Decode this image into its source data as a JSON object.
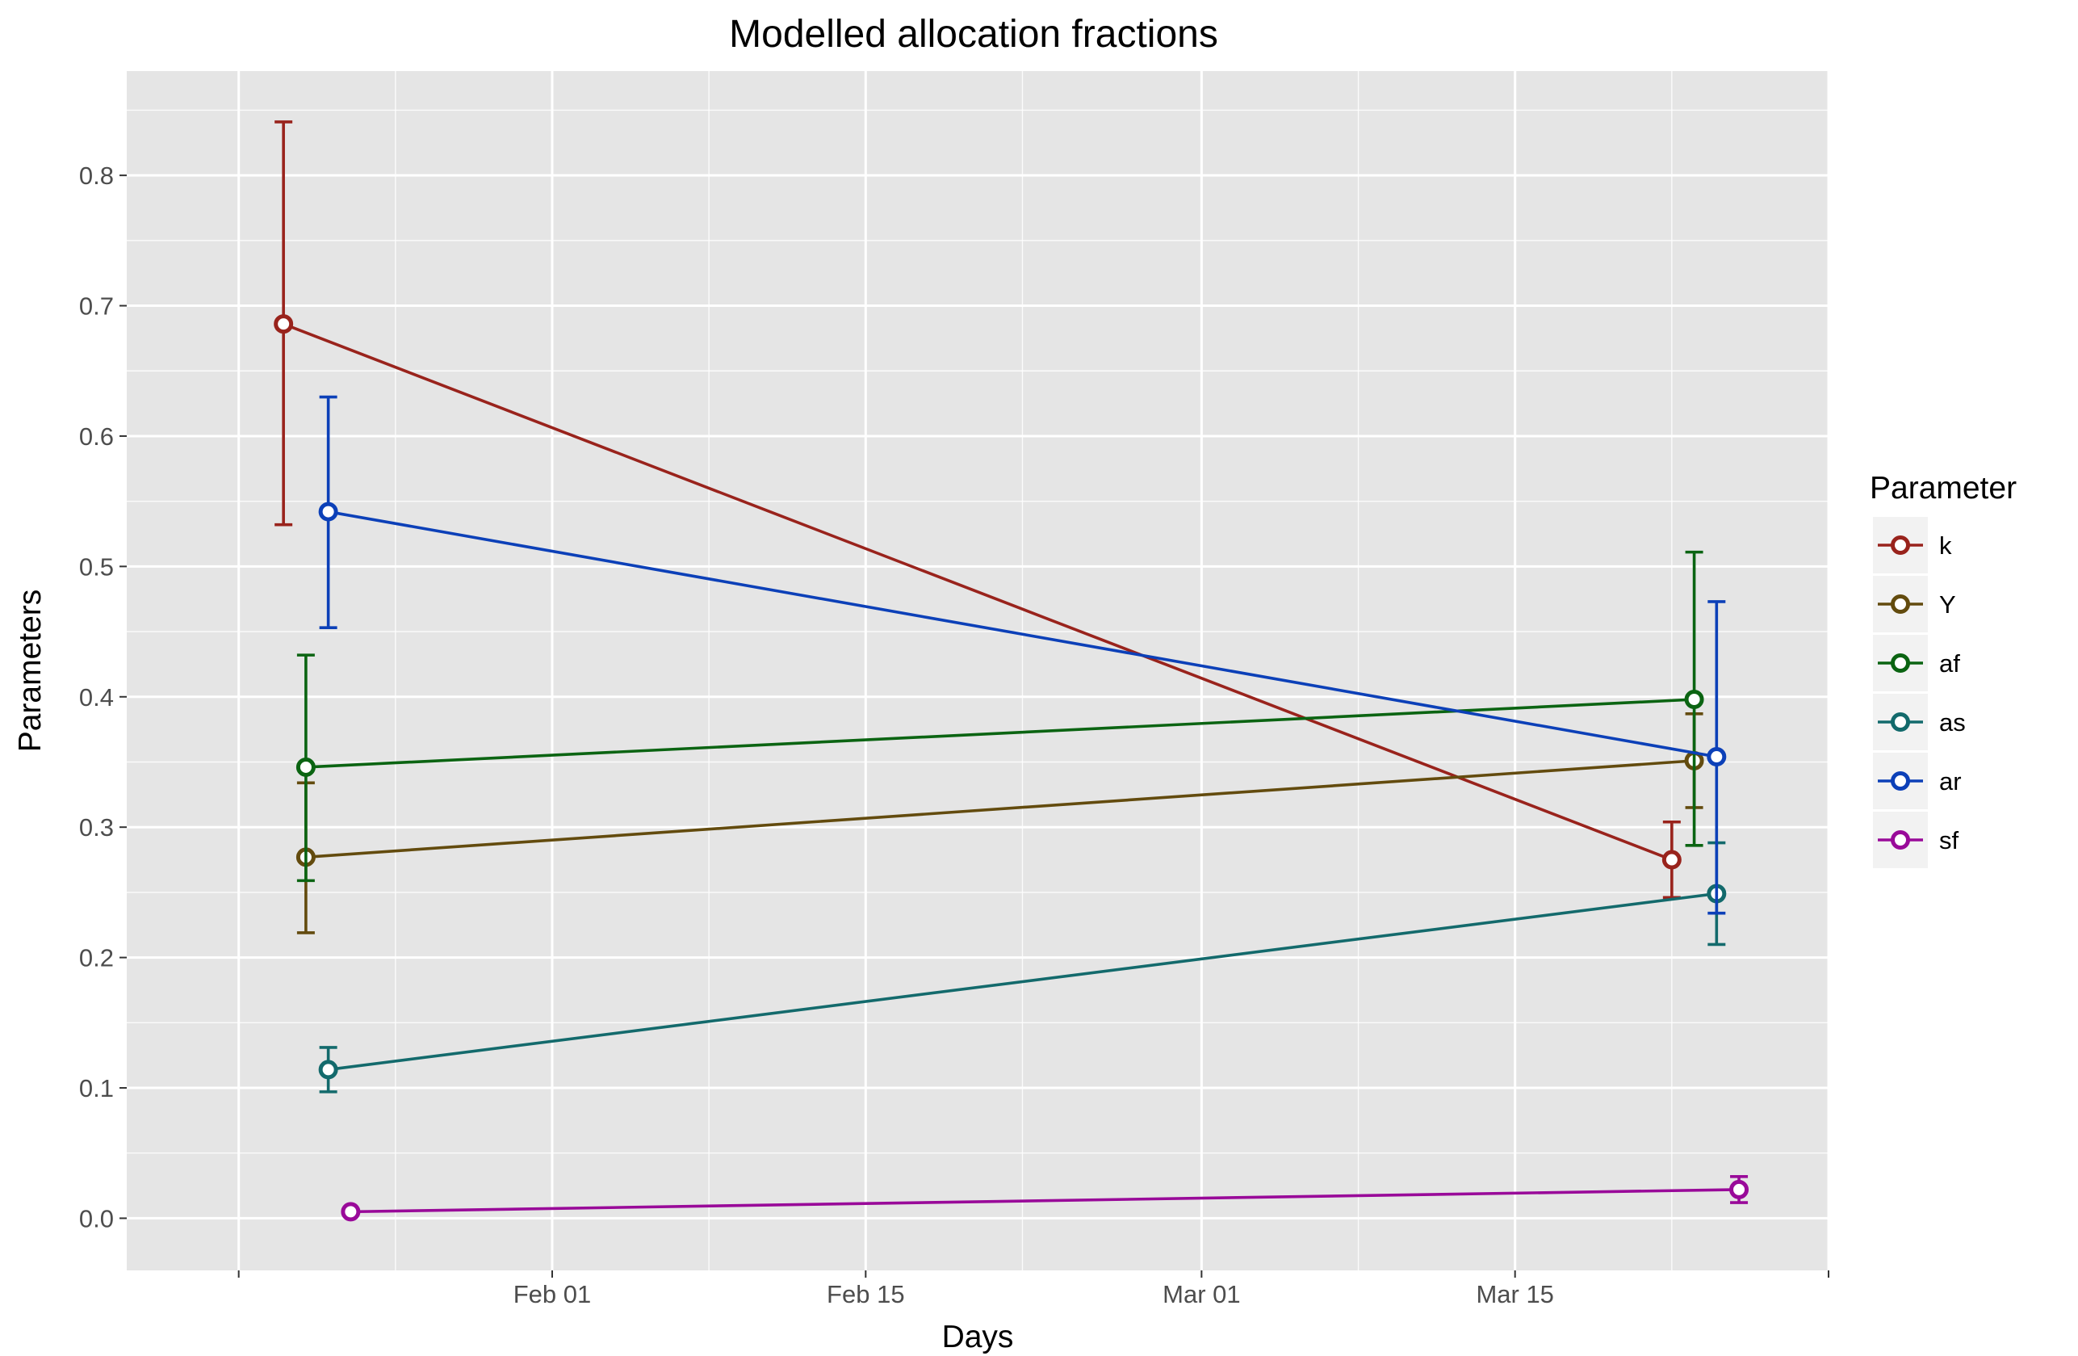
{
  "chart_data": {
    "type": "line",
    "title": "Modelled allocation fractions",
    "xlabel": "Days",
    "ylabel": "Parameters",
    "x_axis": {
      "kind": "date",
      "range": [
        "2016-01-13",
        "2016-03-29"
      ],
      "tick_values": [
        "2016-01-18",
        "2016-02-01",
        "2016-02-15",
        "2016-03-01",
        "2016-03-15",
        "2016-03-29"
      ],
      "minor_tick_values": [
        "2016-01-25",
        "2016-02-08",
        "2016-02-22",
        "2016-03-08",
        "2016-03-22"
      ],
      "tick_labels": [
        "",
        "Feb 01",
        "Feb 15",
        "Mar 01",
        "Mar 15",
        ""
      ]
    },
    "y_axis": {
      "range": [
        -0.04,
        0.88
      ],
      "ticks": [
        0.0,
        0.1,
        0.2,
        0.3,
        0.4,
        0.5,
        0.6,
        0.7,
        0.8
      ],
      "tick_labels": [
        "0.0",
        "0.1",
        "0.2",
        "0.3",
        "0.4",
        "0.5",
        "0.6",
        "0.7",
        "0.8"
      ]
    },
    "grid": true,
    "legend": {
      "title": "Parameter",
      "position": "right"
    },
    "series": [
      {
        "name": "k",
        "color": "#99231c",
        "points": [
          {
            "x": "2016-01-20",
            "y": 0.686,
            "ymin": 0.532,
            "ymax": 0.841
          },
          {
            "x": "2016-03-22",
            "y": 0.275,
            "ymin": 0.246,
            "ymax": 0.304
          }
        ]
      },
      {
        "name": "Y",
        "color": "#634b0e",
        "points": [
          {
            "x": "2016-01-21",
            "y": 0.277,
            "ymin": 0.219,
            "ymax": 0.334
          },
          {
            "x": "2016-03-23",
            "y": 0.351,
            "ymin": 0.315,
            "ymax": 0.387
          }
        ]
      },
      {
        "name": "af",
        "color": "#0b6412",
        "points": [
          {
            "x": "2016-01-21",
            "y": 0.346,
            "ymin": 0.259,
            "ymax": 0.432
          },
          {
            "x": "2016-03-23",
            "y": 0.398,
            "ymin": 0.286,
            "ymax": 0.511
          }
        ]
      },
      {
        "name": "as",
        "color": "#136a6c",
        "points": [
          {
            "x": "2016-01-22",
            "y": 0.114,
            "ymin": 0.097,
            "ymax": 0.131
          },
          {
            "x": "2016-03-24",
            "y": 0.249,
            "ymin": 0.21,
            "ymax": 0.288
          }
        ]
      },
      {
        "name": "ar",
        "color": "#0c40b8",
        "points": [
          {
            "x": "2016-01-22",
            "y": 0.542,
            "ymin": 0.453,
            "ymax": 0.63
          },
          {
            "x": "2016-03-24",
            "y": 0.354,
            "ymin": 0.234,
            "ymax": 0.473
          }
        ]
      },
      {
        "name": "sf",
        "color": "#990a99",
        "points": [
          {
            "x": "2016-01-23",
            "y": 0.005,
            "ymin": 0.005,
            "ymax": 0.005
          },
          {
            "x": "2016-03-25",
            "y": 0.022,
            "ymin": 0.012,
            "ymax": 0.032
          }
        ]
      }
    ],
    "panel_background": "#e5e5e5",
    "grid_color": "#ffffff"
  }
}
